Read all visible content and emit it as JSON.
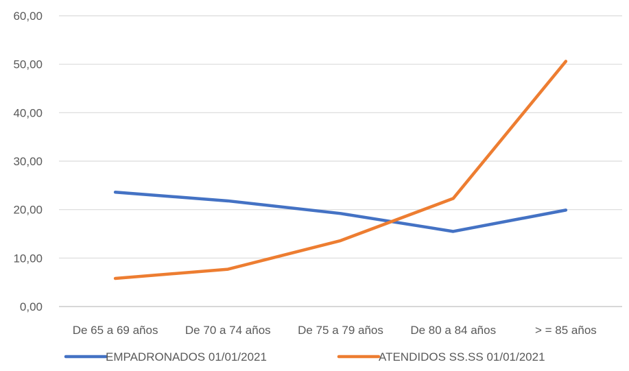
{
  "chart_data": {
    "type": "line",
    "categories": [
      "De 65 a 69 años",
      "De 70 a 74 años",
      "De 75 a 79 años",
      "De 80 a 84 años",
      "> = 85 años"
    ],
    "series": [
      {
        "name": "EMPADRONADOS 01/01/2021",
        "color": "#4472C4",
        "values": [
          23.6,
          21.8,
          19.2,
          15.5,
          19.9
        ]
      },
      {
        "name": "ATENDIDOS SS.SS 01/01/2021",
        "color": "#ED7D31",
        "values": [
          5.8,
          7.7,
          13.6,
          22.3,
          50.6
        ]
      }
    ],
    "yticks": [
      "0,00",
      "10,00",
      "20,00",
      "30,00",
      "40,00",
      "50,00",
      "60,00"
    ],
    "ylim": [
      0,
      60
    ],
    "grid": true,
    "legend": "bottom",
    "title": "",
    "xlabel": "",
    "ylabel": ""
  }
}
